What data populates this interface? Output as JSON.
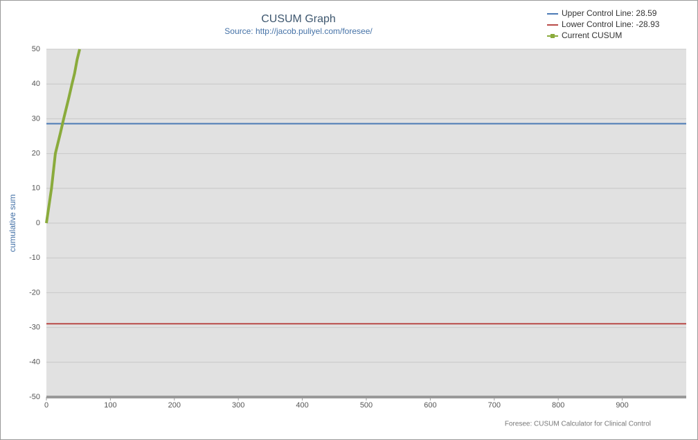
{
  "chart_data": {
    "type": "line",
    "title": "CUSUM Graph",
    "subtitle": "Source: http://jacob.puliyel.com/foresee/",
    "y_label": "cumulative sum",
    "credit": "Foresee: CUSUM Calculator for Clinical Control",
    "xlim": [
      0,
      1000
    ],
    "xticks": [
      0,
      100,
      200,
      300,
      400,
      500,
      600,
      700,
      800,
      900
    ],
    "ylim": [
      -50,
      50
    ],
    "yticks": [
      -50,
      -40,
      -30,
      -20,
      -10,
      0,
      10,
      20,
      30,
      40,
      50
    ],
    "grid": true,
    "legend": "top-right",
    "series": [
      {
        "name": "Upper Control Line: 28.59",
        "color": "#4a7ab5",
        "x": [
          0,
          1000
        ],
        "values": [
          28.59,
          28.59
        ]
      },
      {
        "name": "Lower Control Line: -28.93",
        "color": "#b94a48",
        "x": [
          0,
          1000
        ],
        "values": [
          -28.93,
          -28.93
        ]
      },
      {
        "name": "Current CUSUM",
        "color": "#8aab3c",
        "x": [
          0,
          4,
          8,
          11,
          14,
          18,
          22,
          27,
          31,
          35,
          40,
          44,
          48,
          52
        ],
        "values": [
          0,
          5,
          10,
          15,
          20,
          23,
          26,
          30,
          33,
          36,
          40,
          43,
          47,
          50
        ]
      }
    ]
  }
}
